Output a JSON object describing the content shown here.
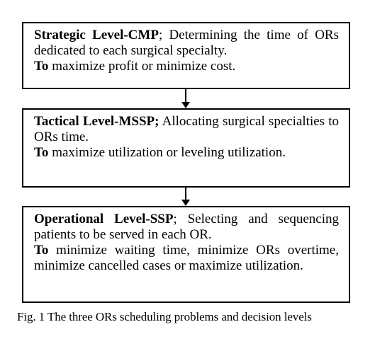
{
  "levels": [
    {
      "title": "Strategic Level-CMP",
      "separator": ";",
      "description": " Determining the time of ORs dedicated to each surgical specialty.",
      "objective_prefix": "To",
      "objective": " maximize profit or minimize cost."
    },
    {
      "title": "Tactical Level-MSSP;",
      "separator": "",
      "description": " Allocating surgical specialties to ORs time.",
      "objective_prefix": "To",
      "objective": " maximize utilization or leveling utilization."
    },
    {
      "title": "Operational Level-SSP",
      "separator": ";",
      "description": " Selecting and sequencing patients to be served in each OR.",
      "objective_prefix": "To",
      "objective": " minimize waiting time, minimize ORs overtime, minimize cancelled cases or maximize utilization."
    }
  ],
  "caption": "Fig. 1 The three ORs scheduling problems and decision levels"
}
